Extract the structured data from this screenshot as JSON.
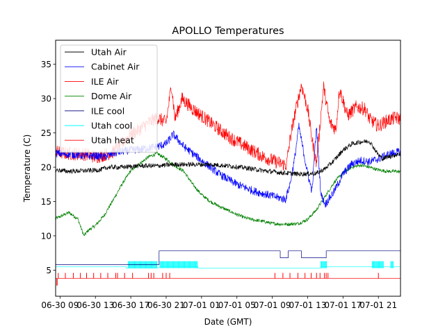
{
  "chart_data": {
    "type": "line",
    "title": "APOLLO Temperatures",
    "xlabel": "Date (GMT)",
    "ylabel": "Temperature (C)",
    "x_tick_labels": [
      "06-30 09",
      "06-30 13",
      "06-30 17",
      "06-30 21",
      "07-01 01",
      "07-01 05",
      "07-01 09",
      "07-01 13",
      "07-01 17",
      "07-01 21"
    ],
    "x_ticks_hours": [
      9,
      13,
      17,
      21,
      25,
      29,
      33,
      37,
      41,
      45
    ],
    "xlim_hours": [
      8.5,
      47.5
    ],
    "ylim": [
      1.2,
      38.5
    ],
    "y_ticks": [
      5,
      10,
      15,
      20,
      25,
      30,
      35
    ],
    "grid": false,
    "legend_position": "top-left",
    "series": [
      {
        "name": "Utah Air",
        "color": "#000000",
        "noise": 0.35,
        "points": [
          [
            8.5,
            19.6
          ],
          [
            10,
            19.4
          ],
          [
            12,
            19.5
          ],
          [
            13.5,
            19.6
          ],
          [
            14.5,
            20.0
          ],
          [
            16,
            20.0
          ],
          [
            17,
            20.1
          ],
          [
            18,
            20.2
          ],
          [
            19,
            20.2
          ],
          [
            20,
            20.2
          ],
          [
            21,
            20.3
          ],
          [
            22,
            20.4
          ],
          [
            24,
            20.4
          ],
          [
            26,
            20.4
          ],
          [
            28,
            20.2
          ],
          [
            30,
            19.9
          ],
          [
            32,
            19.5
          ],
          [
            34,
            19.2
          ],
          [
            36,
            19.0
          ],
          [
            38,
            19.1
          ],
          [
            39,
            19.8
          ],
          [
            40,
            21.0
          ],
          [
            41,
            22.5
          ],
          [
            42,
            23.4
          ],
          [
            43,
            23.7
          ],
          [
            44,
            23.8
          ],
          [
            44.5,
            22.8
          ],
          [
            45,
            21.8
          ],
          [
            45.5,
            21.2
          ],
          [
            46,
            21.5
          ],
          [
            47,
            21.8
          ],
          [
            47.5,
            22.0
          ]
        ]
      },
      {
        "name": "Cabinet Air",
        "color": "#0000ff",
        "noise": 0.6,
        "points": [
          [
            8.5,
            22.0
          ],
          [
            10,
            21.9
          ],
          [
            11,
            21.8
          ],
          [
            12,
            21.6
          ],
          [
            13,
            21.7
          ],
          [
            14,
            21.5
          ],
          [
            15,
            22.0
          ],
          [
            16,
            22.3
          ],
          [
            17,
            22.5
          ],
          [
            18,
            22.6
          ],
          [
            19,
            22.8
          ],
          [
            20,
            23.0
          ],
          [
            21,
            23.4
          ],
          [
            21.8,
            24.8
          ],
          [
            23,
            23.0
          ],
          [
            25,
            21.0
          ],
          [
            27,
            19.0
          ],
          [
            29,
            17.5
          ],
          [
            31,
            16.5
          ],
          [
            33,
            15.8
          ],
          [
            34.5,
            15.3
          ],
          [
            35,
            17.5
          ],
          [
            35.5,
            21.0
          ],
          [
            36,
            26.0
          ],
          [
            37,
            19.0
          ],
          [
            37.5,
            16.5
          ],
          [
            38,
            26.0
          ],
          [
            38.5,
            16.0
          ],
          [
            39,
            14.6
          ],
          [
            40,
            16.5
          ],
          [
            41,
            19.0
          ],
          [
            42,
            20.5
          ],
          [
            43,
            21.0
          ],
          [
            44,
            20.8
          ],
          [
            45,
            21.2
          ],
          [
            46,
            21.8
          ],
          [
            47,
            22.2
          ],
          [
            47.5,
            22.2
          ]
        ]
      },
      {
        "name": "ILE Air",
        "color": "#ff0000",
        "noise": 1.0,
        "points": [
          [
            8.5,
            22.2
          ],
          [
            10,
            22.0
          ],
          [
            12,
            21.9
          ],
          [
            13,
            21.5
          ],
          [
            14,
            21.8
          ],
          [
            15,
            22.2
          ],
          [
            16,
            23.5
          ],
          [
            17,
            24.8
          ],
          [
            18,
            25.5
          ],
          [
            19,
            26.5
          ],
          [
            20,
            27.2
          ],
          [
            21,
            26.5
          ],
          [
            21.6,
            32.0
          ],
          [
            22,
            27.0
          ],
          [
            22.8,
            30.0
          ],
          [
            24,
            28.5
          ],
          [
            26,
            26.5
          ],
          [
            28,
            24.5
          ],
          [
            30,
            23.0
          ],
          [
            32,
            21.5
          ],
          [
            34,
            20.5
          ],
          [
            34.6,
            20.3
          ],
          [
            35,
            24.0
          ],
          [
            35.6,
            28.0
          ],
          [
            36.3,
            32.0
          ],
          [
            37,
            28.5
          ],
          [
            37.5,
            24.0
          ],
          [
            38,
            20.5
          ],
          [
            38.8,
            31.8
          ],
          [
            39.5,
            26.5
          ],
          [
            40.2,
            25.5
          ],
          [
            40.6,
            31.5
          ],
          [
            41.5,
            27.5
          ],
          [
            42.5,
            28.8
          ],
          [
            43.5,
            28.5
          ],
          [
            44,
            27.0
          ],
          [
            45,
            26.0
          ],
          [
            46,
            26.8
          ],
          [
            47,
            27.2
          ],
          [
            47.5,
            27.0
          ]
        ]
      },
      {
        "name": "Dome Air",
        "color": "#008000",
        "noise": 0.25,
        "points": [
          [
            8.5,
            12.5
          ],
          [
            9,
            12.8
          ],
          [
            10,
            13.4
          ],
          [
            11,
            12.5
          ],
          [
            11.7,
            10.0
          ],
          [
            12.2,
            10.8
          ],
          [
            13,
            11.5
          ],
          [
            14,
            13.0
          ],
          [
            15,
            15.2
          ],
          [
            16,
            17.5
          ],
          [
            17,
            19.5
          ],
          [
            18,
            20.5
          ],
          [
            19,
            21.5
          ],
          [
            20,
            22.0
          ],
          [
            21,
            21.2
          ],
          [
            22,
            20.2
          ],
          [
            23,
            19.4
          ],
          [
            24,
            17.5
          ],
          [
            25,
            16.0
          ],
          [
            26,
            15.0
          ],
          [
            27,
            14.3
          ],
          [
            28,
            13.7
          ],
          [
            29,
            13.1
          ],
          [
            30,
            12.6
          ],
          [
            31,
            12.3
          ],
          [
            32,
            12.1
          ],
          [
            33,
            11.8
          ],
          [
            34,
            11.7
          ],
          [
            35,
            11.7
          ],
          [
            36,
            11.8
          ],
          [
            37,
            12.4
          ],
          [
            38,
            13.8
          ],
          [
            39,
            15.8
          ],
          [
            40,
            17.8
          ],
          [
            41,
            19.2
          ],
          [
            42,
            20.0
          ],
          [
            43,
            20.3
          ],
          [
            44,
            20.0
          ],
          [
            45,
            19.6
          ],
          [
            46,
            19.4
          ],
          [
            47,
            19.4
          ],
          [
            47.5,
            19.3
          ]
        ]
      },
      {
        "name": "ILE cool",
        "color": "#00007f",
        "noise": 0,
        "points": [
          [
            8.5,
            5.8
          ],
          [
            20.2,
            5.8
          ],
          [
            20.2,
            7.8
          ],
          [
            33.9,
            7.8
          ],
          [
            33.9,
            6.8
          ],
          [
            34.8,
            6.8
          ],
          [
            34.8,
            7.8
          ],
          [
            36.3,
            7.8
          ],
          [
            36.3,
            6.8
          ],
          [
            39.1,
            6.8
          ],
          [
            39.1,
            7.8
          ],
          [
            47.5,
            7.8
          ]
        ]
      },
      {
        "name": "Utah cool",
        "color": "#00ffff",
        "noise": 0,
        "points": [
          [
            8.5,
            5.5
          ],
          [
            16.5,
            5.5
          ],
          [
            16.5,
            5.3
          ],
          [
            20.0,
            5.3
          ],
          [
            20.3,
            5.5
          ],
          [
            24.6,
            5.5
          ],
          [
            24.6,
            5.3
          ],
          [
            38.5,
            5.3
          ],
          [
            38.5,
            5.5
          ],
          [
            47.5,
            5.5
          ]
        ],
        "burst_ranges": [
          [
            16.7,
            20.0
          ],
          [
            20.3,
            24.6
          ],
          [
            38.5,
            39.2
          ],
          [
            44.3,
            45.6
          ],
          [
            46.4,
            46.7
          ]
        ],
        "burst_top": 6.3
      },
      {
        "name": "Utah heat",
        "color": "#ff0000",
        "noise": 0,
        "points": [
          [
            8.5,
            3.8
          ],
          [
            8.62,
            3.8
          ],
          [
            8.62,
            2.8
          ],
          [
            8.7,
            2.8
          ],
          [
            8.7,
            3.8
          ],
          [
            47.5,
            3.8
          ]
        ],
        "spikes_top": 4.6,
        "spikes_at": [
          8.8,
          9.6,
          10.5,
          11.3,
          12.0,
          12.8,
          13.6,
          14.4,
          15.3,
          15.5,
          16.3,
          17.2,
          19.0,
          19.3,
          19.6,
          20.6,
          21.0,
          21.4,
          33.3,
          34.2,
          35.0,
          35.9,
          36.7,
          37.4,
          38.0,
          38.4,
          38.9,
          39.1,
          39.3,
          45.0
        ]
      }
    ]
  }
}
